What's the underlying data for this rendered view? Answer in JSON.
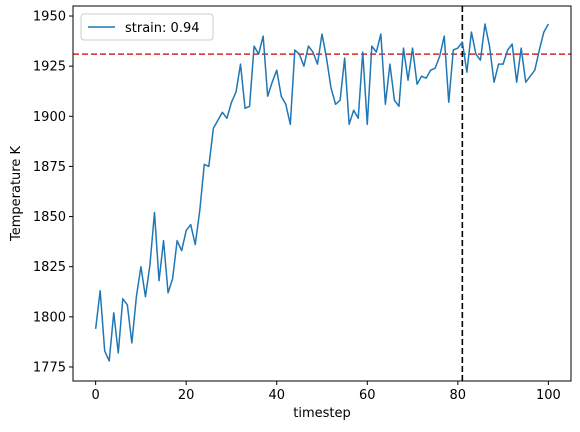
{
  "chart_data": {
    "type": "line",
    "title": "",
    "xlabel": "timestep",
    "ylabel": "Temperature K",
    "xlim": [
      -5,
      105
    ],
    "ylim": [
      1768,
      1955
    ],
    "xticks": [
      0,
      20,
      40,
      60,
      80,
      100
    ],
    "yticks": [
      1775,
      1800,
      1825,
      1850,
      1875,
      1900,
      1925,
      1950
    ],
    "grid": false,
    "legend": {
      "placement": "top-left",
      "entries": [
        "strain: 0.94"
      ]
    },
    "series": [
      {
        "name": "strain: 0.94",
        "color": "#1f77b4",
        "x": [
          0,
          1,
          2,
          3,
          4,
          5,
          6,
          7,
          8,
          9,
          10,
          11,
          12,
          13,
          14,
          15,
          16,
          17,
          18,
          19,
          20,
          21,
          22,
          23,
          24,
          25,
          26,
          27,
          28,
          29,
          30,
          31,
          32,
          33,
          34,
          35,
          36,
          37,
          38,
          39,
          40,
          41,
          42,
          43,
          44,
          45,
          46,
          47,
          48,
          49,
          50,
          51,
          52,
          53,
          54,
          55,
          56,
          57,
          58,
          59,
          60,
          61,
          62,
          63,
          64,
          65,
          66,
          67,
          68,
          69,
          70,
          71,
          72,
          73,
          74,
          75,
          76,
          77,
          78,
          79,
          80,
          81,
          82,
          83,
          84,
          85,
          86,
          87,
          88,
          89,
          90,
          91,
          92,
          93,
          94,
          95,
          96,
          97,
          98,
          99,
          100
        ],
        "y": [
          1794,
          1813,
          1783,
          1778,
          1802,
          1782,
          1809,
          1806,
          1787,
          1810,
          1825,
          1810,
          1826,
          1852,
          1818,
          1838,
          1812,
          1819,
          1838,
          1833,
          1843,
          1846,
          1836,
          1853,
          1876,
          1875,
          1894,
          1898,
          1902,
          1899,
          1907,
          1912,
          1926,
          1904,
          1905,
          1935,
          1931,
          1940,
          1910,
          1917,
          1923,
          1910,
          1906,
          1896,
          1933,
          1931,
          1925,
          1935,
          1932,
          1926,
          1941,
          1929,
          1914,
          1906,
          1908,
          1929,
          1896,
          1903,
          1899,
          1932,
          1896,
          1935,
          1932,
          1941,
          1906,
          1926,
          1908,
          1905,
          1934,
          1918,
          1934,
          1916,
          1920,
          1919,
          1923,
          1924,
          1930,
          1940,
          1907,
          1933,
          1934,
          1937,
          1922,
          1942,
          1931,
          1928,
          1946,
          1935,
          1917,
          1926,
          1926,
          1933,
          1936,
          1917,
          1934,
          1917,
          1920,
          1923,
          1933,
          1942,
          1946
        ]
      }
    ],
    "reference_lines": [
      {
        "orientation": "horizontal",
        "value": 1931,
        "color": "#d62728",
        "style": "dashed"
      },
      {
        "orientation": "vertical",
        "value": 81,
        "color": "#000000",
        "style": "dashed"
      }
    ]
  }
}
